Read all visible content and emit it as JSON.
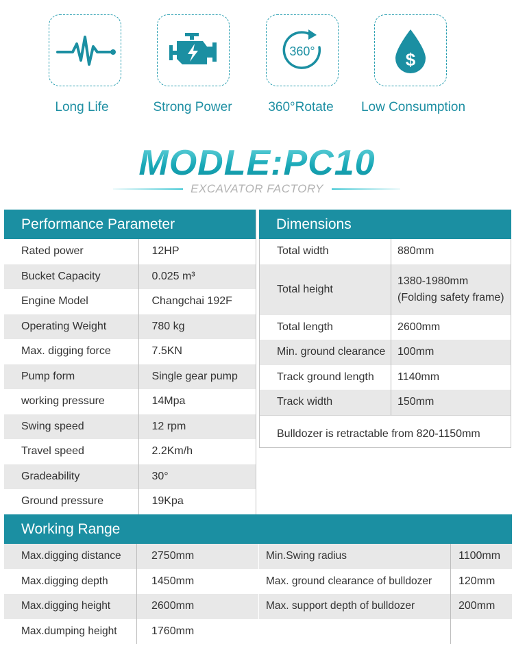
{
  "features": [
    {
      "icon": "heartbeat-icon",
      "label": "Long Life"
    },
    {
      "icon": "engine-icon",
      "label": "Strong Power"
    },
    {
      "icon": "rotate-360-icon",
      "label": "360°Rotate",
      "icon_text": "360°"
    },
    {
      "icon": "fuel-drop-icon",
      "label": "Low Consumption",
      "icon_text": "$"
    }
  ],
  "title": "MODLE:PC10",
  "subtitle": "EXCAVATOR FACTORY",
  "colors": {
    "accent": "#1b8fa2",
    "title_cyan": "#18aebd",
    "row_grey": "#e8e8e8"
  },
  "performance": {
    "header": "Performance Parameter",
    "rows": [
      {
        "k": "Rated power",
        "v": "12HP"
      },
      {
        "k": "Bucket Capacity",
        "v": "0.025 m³"
      },
      {
        "k": "Engine Model",
        "v": "Changchai 192F"
      },
      {
        "k": "Operating Weight",
        "v": "780 kg"
      },
      {
        "k": "Max. digging force",
        "v": "7.5KN"
      },
      {
        "k": "Pump form",
        "v": "Single gear pump"
      },
      {
        "k": "working pressure",
        "v": "14Mpa"
      },
      {
        "k": "Swing speed",
        "v": "12 rpm"
      },
      {
        "k": "Travel speed",
        "v": "2.2Km/h"
      },
      {
        "k": "Gradeability",
        "v": "30°"
      },
      {
        "k": "Ground pressure",
        "v": "19Kpa"
      }
    ]
  },
  "dimensions": {
    "header": "Dimensions",
    "rows": [
      {
        "k": "Total width",
        "v": "880mm",
        "v2": ""
      },
      {
        "k": "Total height",
        "v": "1380-1980mm",
        "v2": "(Folding safety frame)"
      },
      {
        "k": "Total length",
        "v": "2600mm",
        "v2": ""
      },
      {
        "k": "Min. ground clearance",
        "v": "100mm",
        "v2": ""
      },
      {
        "k": "Track ground length",
        "v": "1140mm",
        "v2": ""
      },
      {
        "k": "Track width",
        "v": "150mm",
        "v2": ""
      }
    ],
    "note": "Bulldozer is retractable from 820-1150mm"
  },
  "working_range": {
    "header": "Working Range",
    "rows": [
      {
        "k1": "Max.digging distance",
        "v1": "2750mm",
        "k2": "Min.Swing  radius",
        "v2": "1100mm"
      },
      {
        "k1": "Max.digging depth",
        "v1": "1450mm",
        "k2": "Max. ground clearance of bulldozer",
        "v2": "120mm"
      },
      {
        "k1": "Max.digging height",
        "v1": "2600mm",
        "k2": "Max. support depth of bulldozer",
        "v2": "200mm"
      },
      {
        "k1": "Max.dumping height",
        "v1": "1760mm",
        "k2": "",
        "v2": ""
      }
    ]
  }
}
